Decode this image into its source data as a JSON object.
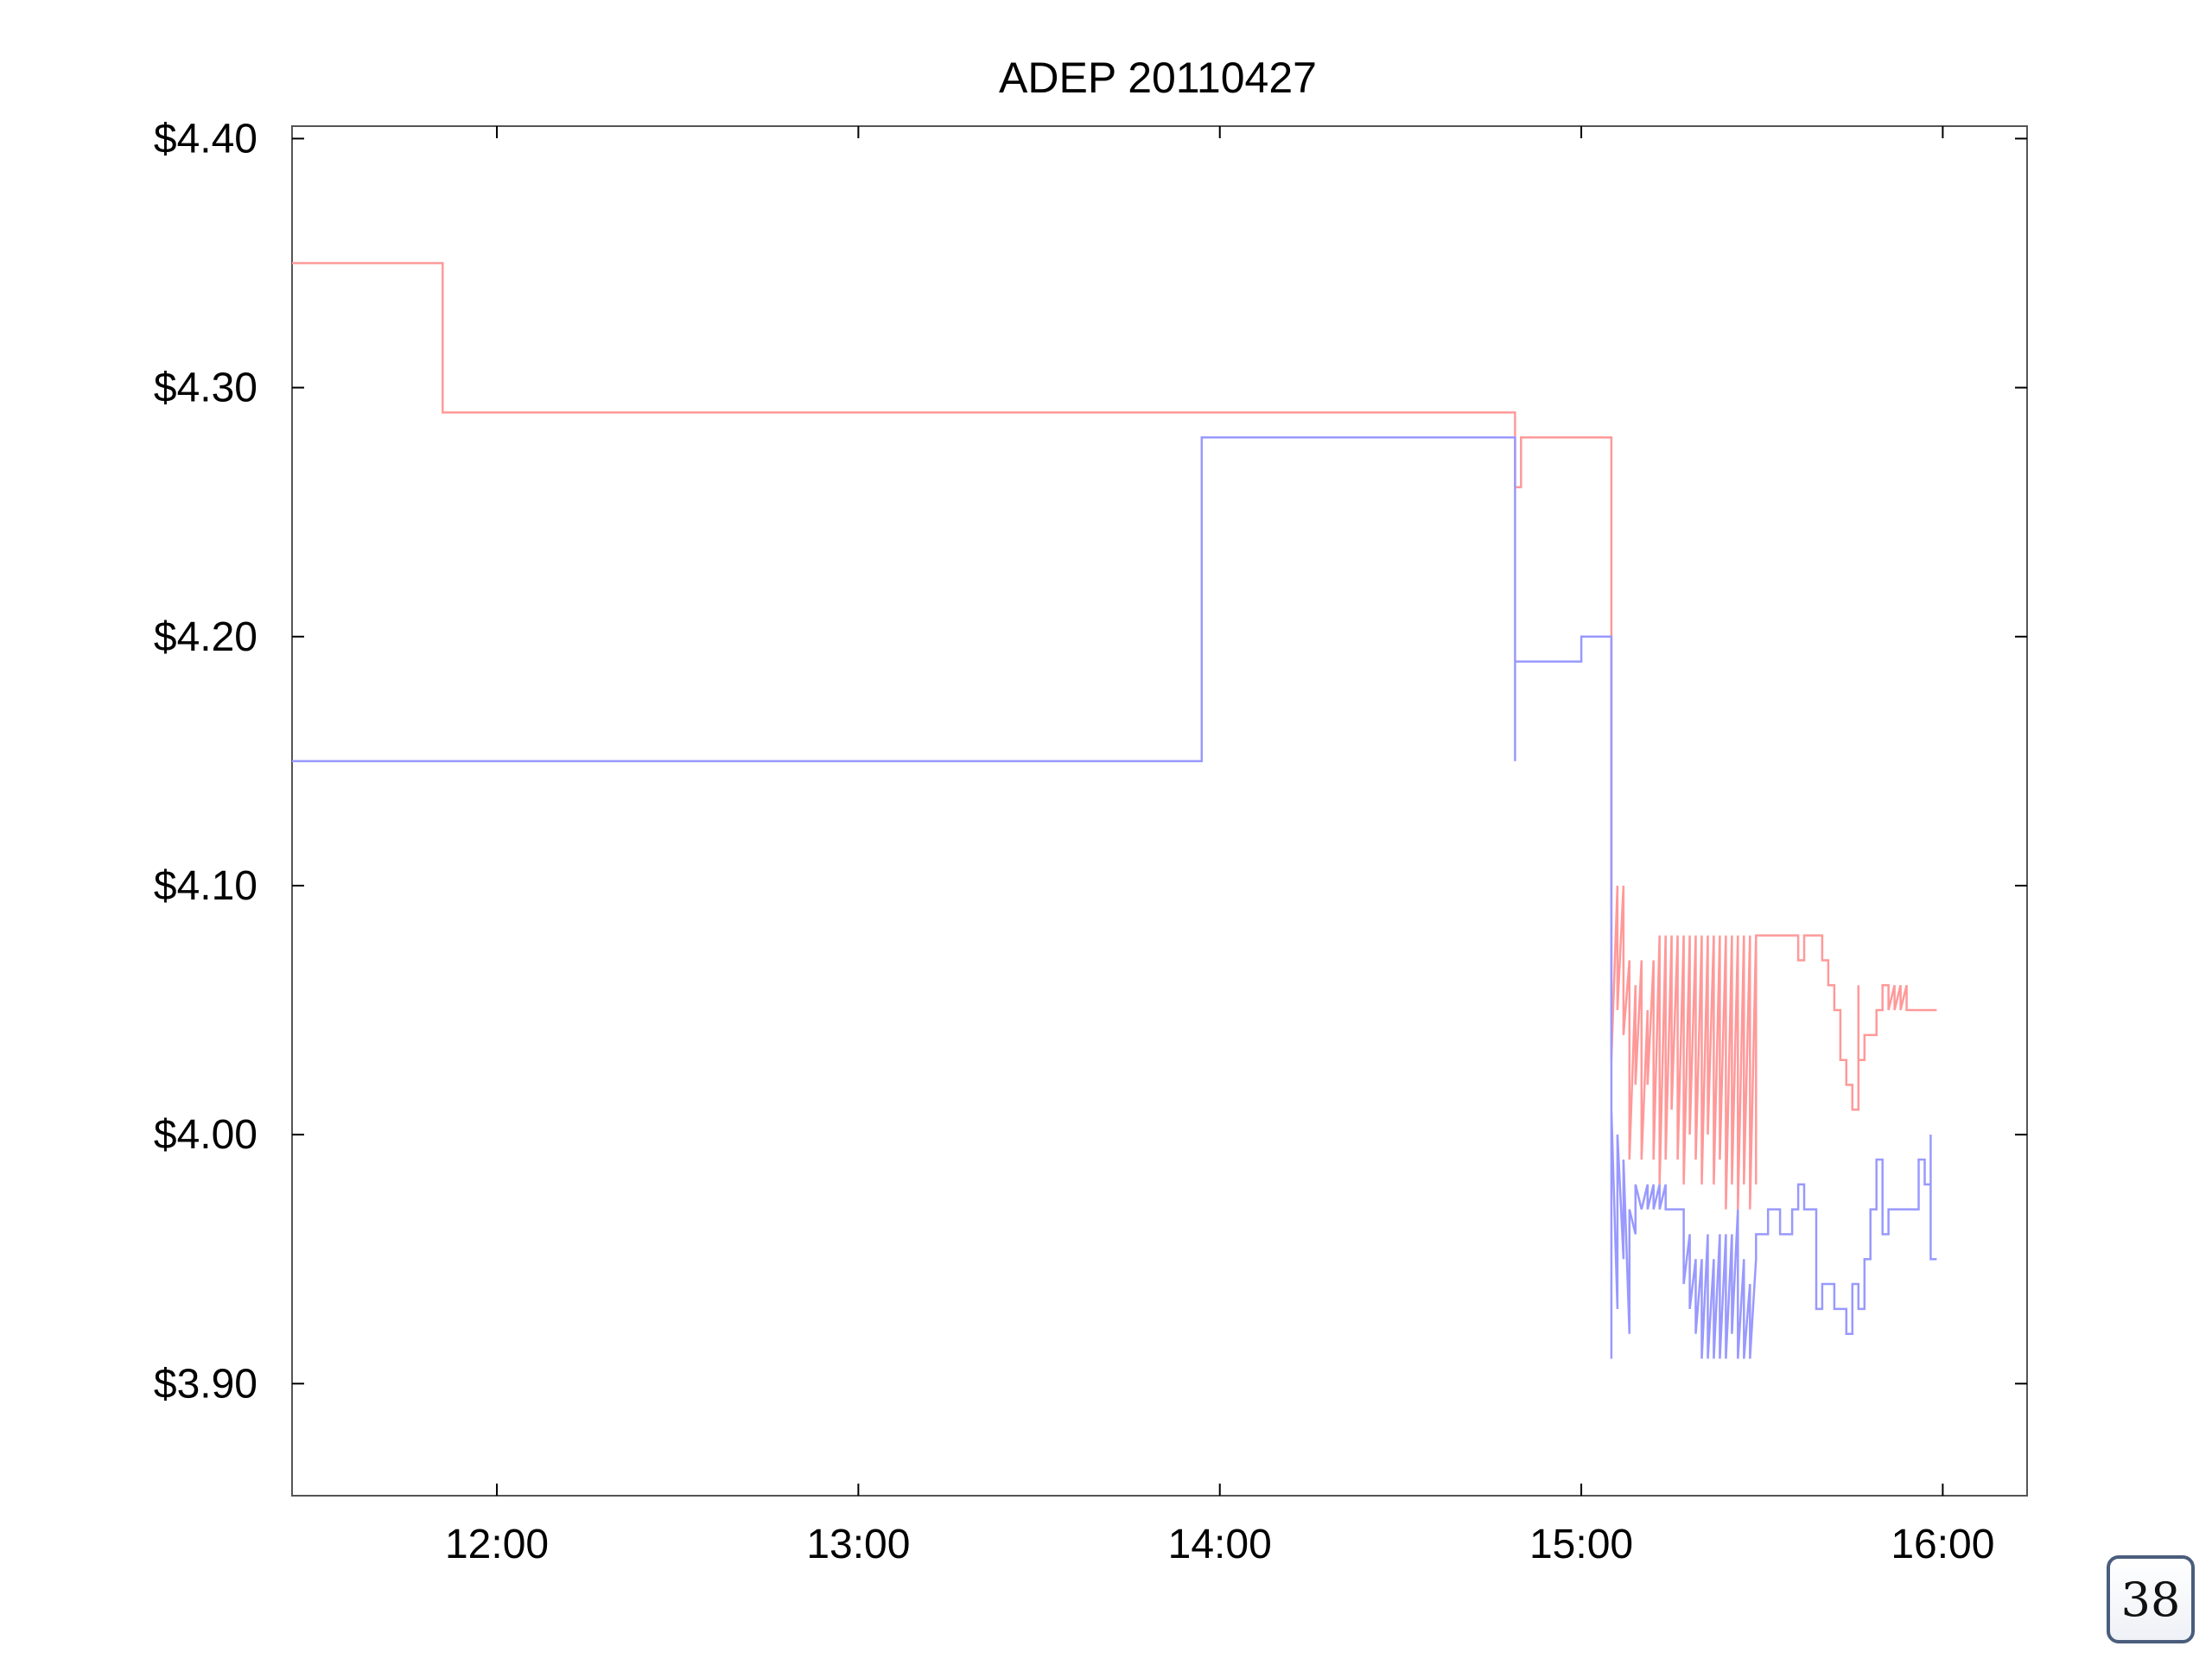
{
  "slide": {
    "page_number": "38"
  },
  "chart_data": {
    "type": "line",
    "step": true,
    "title": "ADEP 20110427",
    "xlabel": "",
    "ylabel": "",
    "xlim": [
      "11:26",
      "16:14"
    ],
    "ylim": [
      3.855,
      4.405
    ],
    "x_ticks": [
      "12:00",
      "13:00",
      "14:00",
      "15:00",
      "16:00"
    ],
    "y_ticks": [
      {
        "value": 4.4,
        "label": "$4.40"
      },
      {
        "value": 4.3,
        "label": "$4.30"
      },
      {
        "value": 4.2,
        "label": "$4.20"
      },
      {
        "value": 4.1,
        "label": "$4.10"
      },
      {
        "value": 4.0,
        "label": "$4.00"
      },
      {
        "value": 3.9,
        "label": "$3.90"
      }
    ],
    "grid": false,
    "legend": "none",
    "series": [
      {
        "color": "#ff9999",
        "points": [
          [
            "11:26",
            4.35
          ],
          [
            "11:51",
            4.35
          ],
          [
            "11:51",
            4.29
          ],
          [
            "14:49",
            4.29
          ],
          [
            "14:49",
            4.26
          ],
          [
            "14:50",
            4.26
          ],
          [
            "14:50",
            4.28
          ],
          [
            "15:05",
            4.28
          ],
          [
            "15:05",
            4.03
          ],
          [
            "15:06",
            4.1
          ],
          [
            "15:06",
            4.05
          ],
          [
            "15:07",
            4.1
          ],
          [
            "15:07",
            4.04
          ],
          [
            "15:08",
            4.07
          ],
          [
            "15:08",
            3.99
          ],
          [
            "15:09",
            4.06
          ],
          [
            "15:09",
            4.02
          ],
          [
            "15:10",
            4.07
          ],
          [
            "15:10",
            3.99
          ],
          [
            "15:11",
            4.05
          ],
          [
            "15:11",
            4.02
          ],
          [
            "15:12",
            4.07
          ],
          [
            "15:12",
            3.99
          ],
          [
            "15:13",
            4.08
          ],
          [
            "15:13",
            3.98
          ],
          [
            "15:14",
            4.08
          ],
          [
            "15:14",
            3.99
          ],
          [
            "15:15",
            4.08
          ],
          [
            "15:15",
            4.01
          ],
          [
            "15:16",
            4.08
          ],
          [
            "15:16",
            3.99
          ],
          [
            "15:17",
            4.08
          ],
          [
            "15:17",
            3.98
          ],
          [
            "15:18",
            4.08
          ],
          [
            "15:18",
            4.0
          ],
          [
            "15:19",
            4.08
          ],
          [
            "15:19",
            3.99
          ],
          [
            "15:20",
            4.08
          ],
          [
            "15:20",
            3.98
          ],
          [
            "15:21",
            4.08
          ],
          [
            "15:21",
            4.0
          ],
          [
            "15:22",
            4.08
          ],
          [
            "15:22",
            3.98
          ],
          [
            "15:23",
            4.08
          ],
          [
            "15:23",
            3.99
          ],
          [
            "15:24",
            4.08
          ],
          [
            "15:24",
            3.97
          ],
          [
            "15:25",
            4.08
          ],
          [
            "15:25",
            3.98
          ],
          [
            "15:26",
            4.08
          ],
          [
            "15:26",
            3.97
          ],
          [
            "15:27",
            4.08
          ],
          [
            "15:27",
            3.98
          ],
          [
            "15:28",
            4.08
          ],
          [
            "15:28",
            3.97
          ],
          [
            "15:29",
            4.08
          ],
          [
            "15:29",
            3.98
          ],
          [
            "15:29",
            4.08
          ],
          [
            "15:36",
            4.08
          ],
          [
            "15:36",
            4.07
          ],
          [
            "15:37",
            4.07
          ],
          [
            "15:37",
            4.08
          ],
          [
            "15:40",
            4.08
          ],
          [
            "15:40",
            4.07
          ],
          [
            "15:41",
            4.07
          ],
          [
            "15:41",
            4.06
          ],
          [
            "15:42",
            4.06
          ],
          [
            "15:42",
            4.05
          ],
          [
            "15:43",
            4.05
          ],
          [
            "15:43",
            4.03
          ],
          [
            "15:44",
            4.03
          ],
          [
            "15:44",
            4.02
          ],
          [
            "15:45",
            4.02
          ],
          [
            "15:45",
            4.01
          ],
          [
            "15:46",
            4.01
          ],
          [
            "15:46",
            4.06
          ],
          [
            "15:46",
            4.03
          ],
          [
            "15:47",
            4.03
          ],
          [
            "15:47",
            4.04
          ],
          [
            "15:49",
            4.04
          ],
          [
            "15:49",
            4.05
          ],
          [
            "15:50",
            4.05
          ],
          [
            "15:50",
            4.06
          ],
          [
            "15:51",
            4.06
          ],
          [
            "15:51",
            4.05
          ],
          [
            "15:52",
            4.06
          ],
          [
            "15:52",
            4.05
          ],
          [
            "15:53",
            4.06
          ],
          [
            "15:53",
            4.05
          ],
          [
            "15:54",
            4.06
          ],
          [
            "15:54",
            4.05
          ],
          [
            "15:59",
            4.05
          ]
        ]
      },
      {
        "color": "#9999ff",
        "points": [
          [
            "11:26",
            4.15
          ],
          [
            "13:57",
            4.15
          ],
          [
            "13:57",
            4.28
          ],
          [
            "14:49",
            4.28
          ],
          [
            "14:49",
            4.15
          ],
          [
            "14:49",
            4.19
          ],
          [
            "15:00",
            4.19
          ],
          [
            "15:00",
            4.2
          ],
          [
            "15:05",
            4.2
          ],
          [
            "15:05",
            3.91
          ],
          [
            "15:05",
            4.01
          ],
          [
            "15:06",
            3.93
          ],
          [
            "15:06",
            4.0
          ],
          [
            "15:07",
            3.95
          ],
          [
            "15:07",
            3.99
          ],
          [
            "15:08",
            3.92
          ],
          [
            "15:08",
            3.97
          ],
          [
            "15:09",
            3.96
          ],
          [
            "15:09",
            3.98
          ],
          [
            "15:10",
            3.97
          ],
          [
            "15:11",
            3.98
          ],
          [
            "15:11",
            3.97
          ],
          [
            "15:12",
            3.98
          ],
          [
            "15:12",
            3.97
          ],
          [
            "15:13",
            3.98
          ],
          [
            "15:13",
            3.97
          ],
          [
            "15:14",
            3.98
          ],
          [
            "15:14",
            3.97
          ],
          [
            "15:17",
            3.97
          ],
          [
            "15:17",
            3.94
          ],
          [
            "15:18",
            3.96
          ],
          [
            "15:18",
            3.93
          ],
          [
            "15:19",
            3.95
          ],
          [
            "15:19",
            3.92
          ],
          [
            "15:20",
            3.95
          ],
          [
            "15:20",
            3.91
          ],
          [
            "15:21",
            3.96
          ],
          [
            "15:21",
            3.91
          ],
          [
            "15:22",
            3.95
          ],
          [
            "15:22",
            3.91
          ],
          [
            "15:23",
            3.96
          ],
          [
            "15:23",
            3.91
          ],
          [
            "15:24",
            3.96
          ],
          [
            "15:24",
            3.91
          ],
          [
            "15:25",
            3.96
          ],
          [
            "15:25",
            3.92
          ],
          [
            "15:26",
            3.97
          ],
          [
            "15:26",
            3.91
          ],
          [
            "15:27",
            3.95
          ],
          [
            "15:27",
            3.91
          ],
          [
            "15:28",
            3.94
          ],
          [
            "15:28",
            3.91
          ],
          [
            "15:29",
            3.95
          ],
          [
            "15:29",
            3.96
          ],
          [
            "15:31",
            3.96
          ],
          [
            "15:31",
            3.97
          ],
          [
            "15:33",
            3.97
          ],
          [
            "15:33",
            3.96
          ],
          [
            "15:35",
            3.96
          ],
          [
            "15:35",
            3.97
          ],
          [
            "15:36",
            3.97
          ],
          [
            "15:36",
            3.98
          ],
          [
            "15:37",
            3.98
          ],
          [
            "15:37",
            3.97
          ],
          [
            "15:39",
            3.97
          ],
          [
            "15:39",
            3.93
          ],
          [
            "15:40",
            3.93
          ],
          [
            "15:40",
            3.94
          ],
          [
            "15:42",
            3.94
          ],
          [
            "15:42",
            3.93
          ],
          [
            "15:44",
            3.93
          ],
          [
            "15:44",
            3.92
          ],
          [
            "15:45",
            3.92
          ],
          [
            "15:45",
            3.94
          ],
          [
            "15:46",
            3.94
          ],
          [
            "15:46",
            3.93
          ],
          [
            "15:47",
            3.93
          ],
          [
            "15:47",
            3.95
          ],
          [
            "15:48",
            3.95
          ],
          [
            "15:48",
            3.97
          ],
          [
            "15:49",
            3.97
          ],
          [
            "15:49",
            3.99
          ],
          [
            "15:50",
            3.99
          ],
          [
            "15:50",
            3.96
          ],
          [
            "15:51",
            3.96
          ],
          [
            "15:51",
            3.97
          ],
          [
            "15:56",
            3.97
          ],
          [
            "15:56",
            3.99
          ],
          [
            "15:57",
            3.99
          ],
          [
            "15:57",
            3.98
          ],
          [
            "15:58",
            3.98
          ],
          [
            "15:58",
            4.0
          ],
          [
            "15:58",
            3.95
          ],
          [
            "15:59",
            3.95
          ]
        ]
      }
    ]
  }
}
